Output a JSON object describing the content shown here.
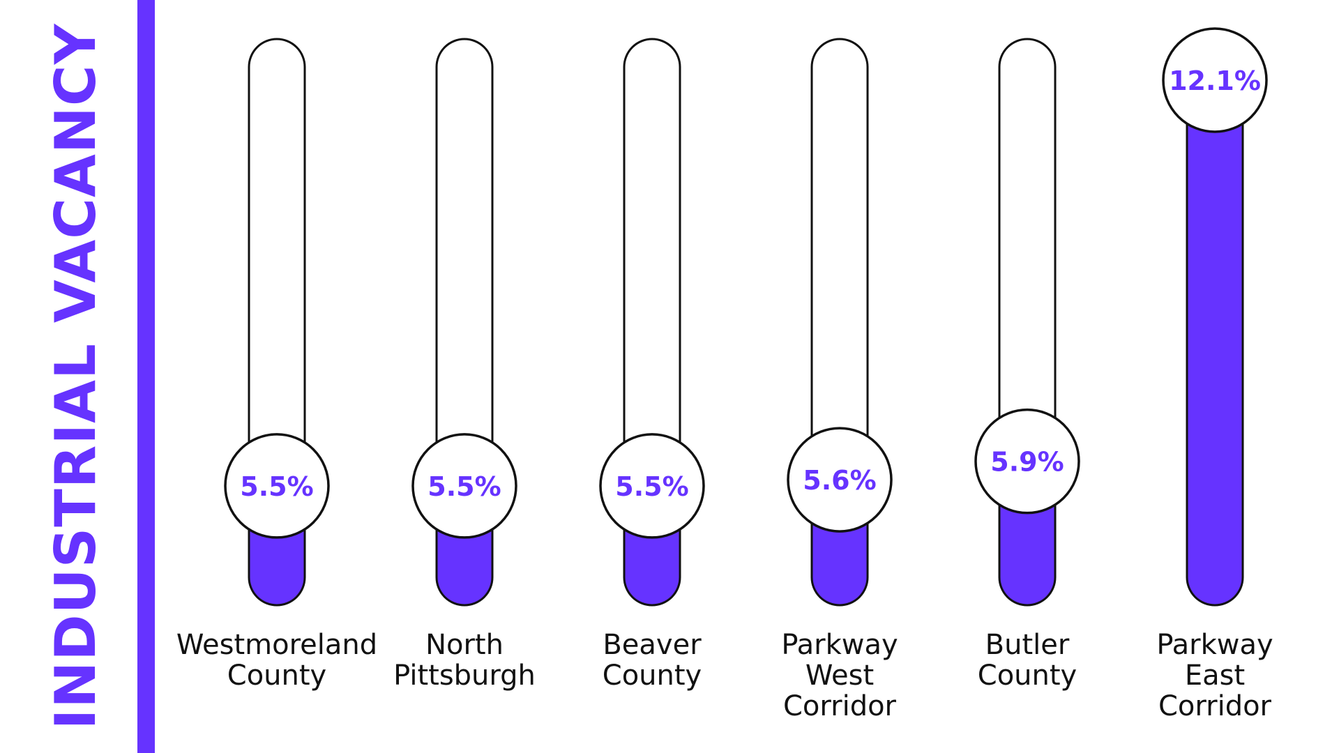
{
  "colors": {
    "accent": "#6633ff",
    "outline": "#111111",
    "background": "#ffffff"
  },
  "chart_data": {
    "type": "bar",
    "title": "INDUSTRIAL VACANCY",
    "categories": [
      [
        "Westmoreland",
        "County"
      ],
      [
        "North",
        "Pittsburgh"
      ],
      [
        "Beaver",
        "County"
      ],
      [
        "Parkway",
        "West",
        "Corridor"
      ],
      [
        "Butler",
        "County"
      ],
      [
        "Parkway",
        "East",
        "Corridor"
      ]
    ],
    "values": [
      5.5,
      5.5,
      5.5,
      5.6,
      5.9,
      12.1
    ],
    "value_labels": [
      "5.5%",
      "5.5%",
      "5.5%",
      "5.6%",
      "5.9%",
      "12.1%"
    ],
    "ylim": [
      5.0,
      12.1
    ],
    "orientation": "vertical-thermometer",
    "grid": false,
    "legend": "none"
  }
}
